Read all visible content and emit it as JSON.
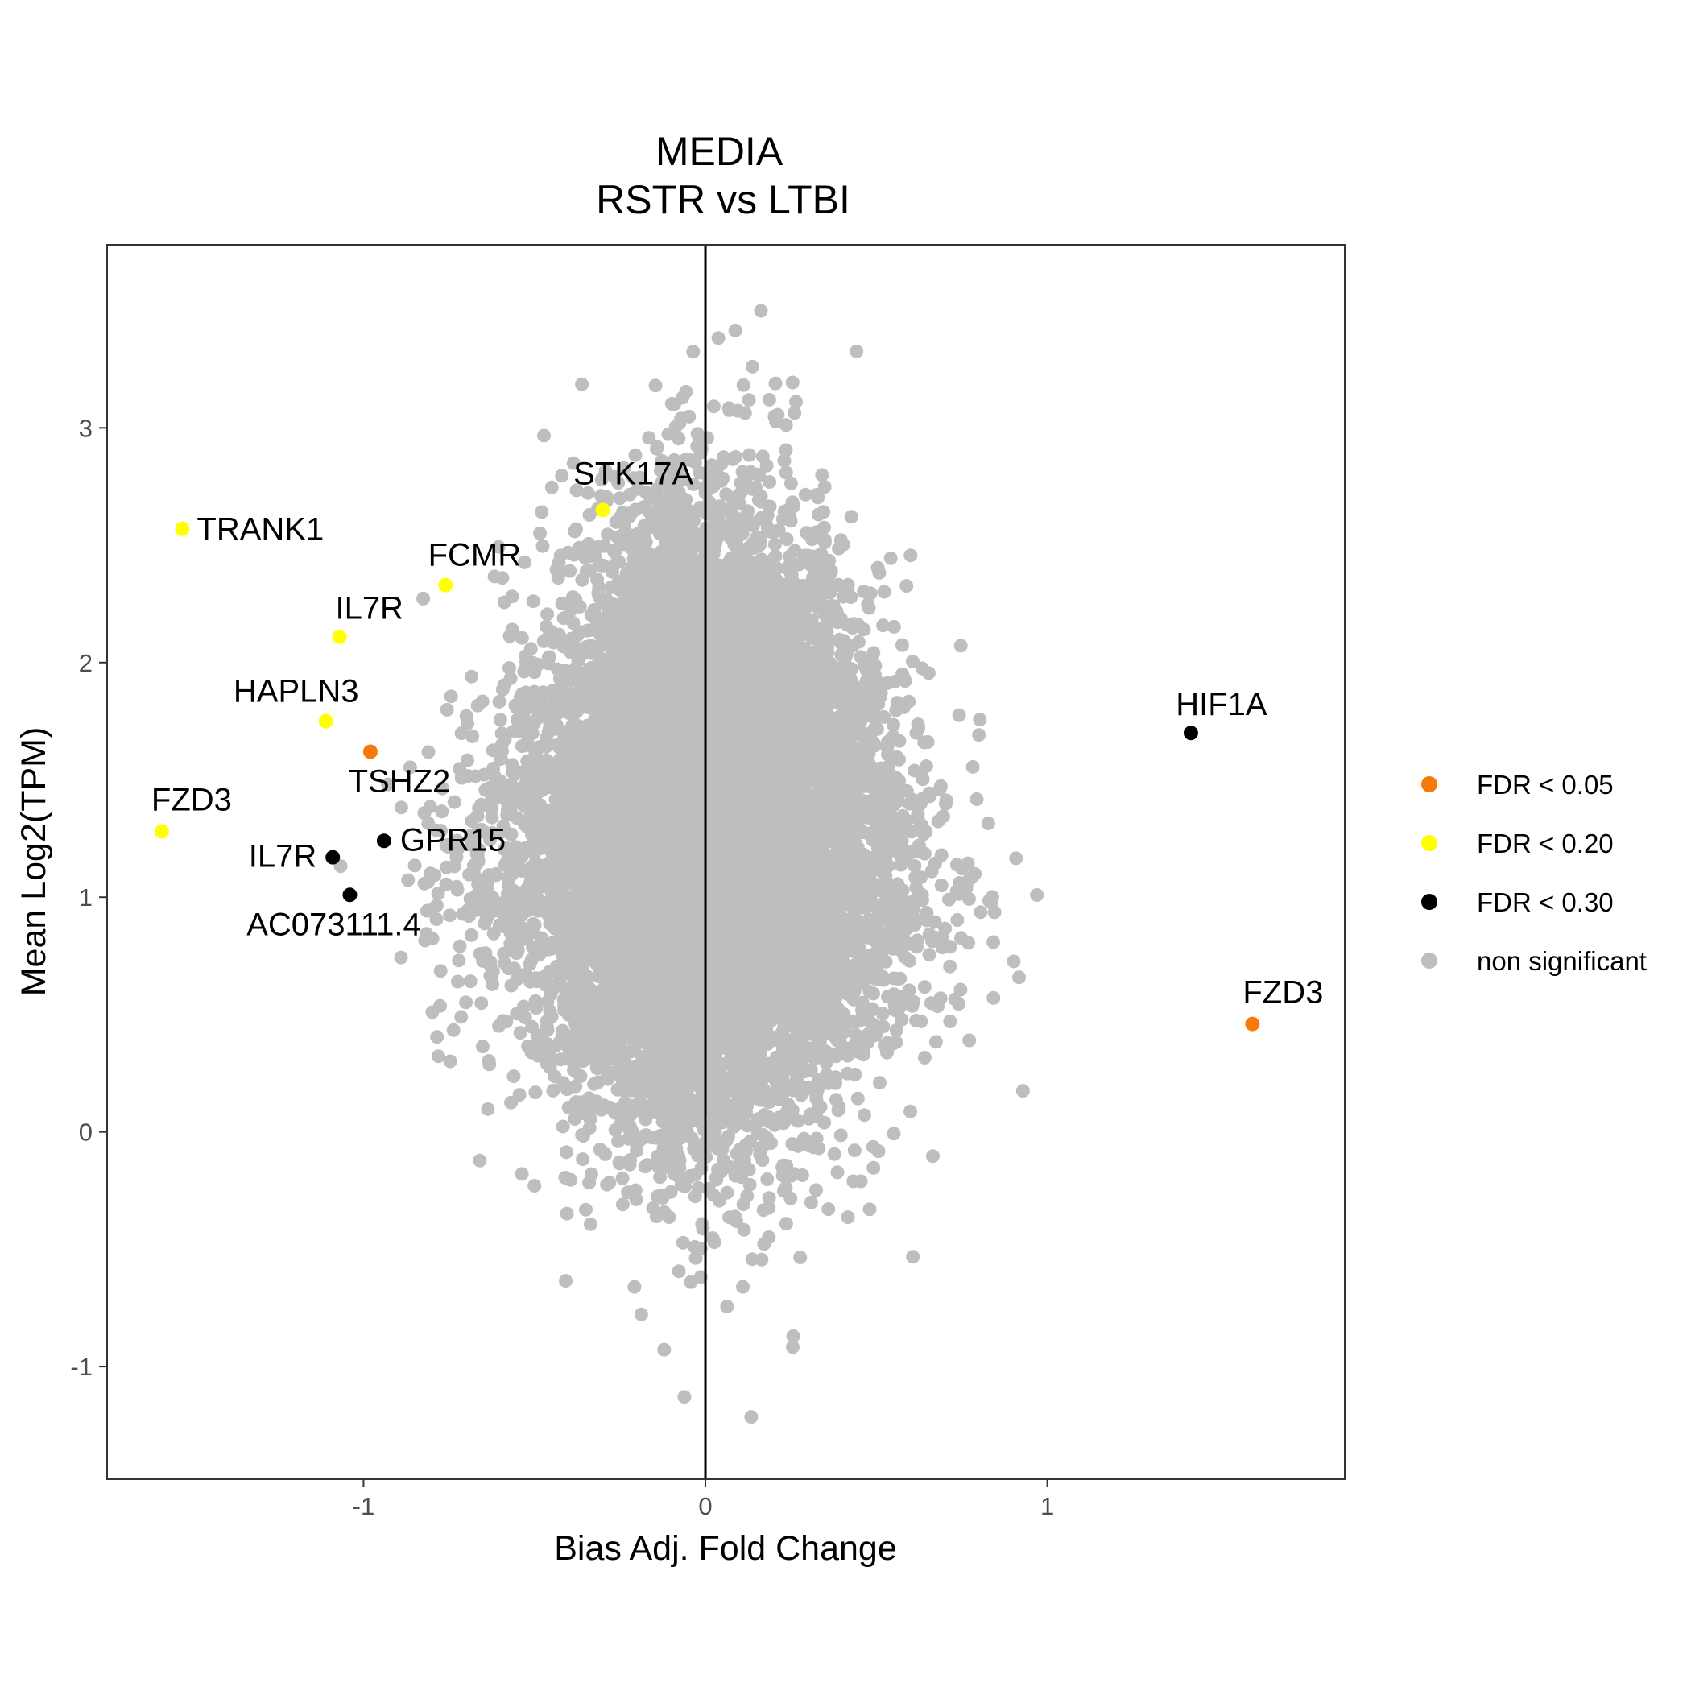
{
  "chart_data": {
    "type": "scatter",
    "title_lines": [
      "MEDIA",
      "RSTR vs LTBI"
    ],
    "xlabel": "Bias Adj. Fold Change",
    "ylabel": "Mean Log2(TPM)",
    "xlim": [
      -1.75,
      1.87
    ],
    "ylim": [
      -1.48,
      3.78
    ],
    "x_ticks": [
      {
        "value": -1,
        "label": "-1"
      },
      {
        "value": 0,
        "label": "0"
      },
      {
        "value": 1,
        "label": "1"
      }
    ],
    "y_ticks": [
      {
        "value": -1,
        "label": "-1"
      },
      {
        "value": 0,
        "label": "0"
      },
      {
        "value": 1,
        "label": "1"
      },
      {
        "value": 2,
        "label": "2"
      },
      {
        "value": 3,
        "label": "3"
      }
    ],
    "vline_x": 0,
    "grid": false,
    "legend": {
      "position": "right",
      "entries": [
        {
          "label": "FDR < 0.05",
          "color": "#F57A0A"
        },
        {
          "label": "FDR < 0.20",
          "color": "#FFFF00"
        },
        {
          "label": "FDR < 0.30",
          "color": "#000000"
        },
        {
          "label": "non significant",
          "color": "#BEBEBE"
        }
      ]
    },
    "background_cloud": {
      "category": "non significant",
      "color": "#BEBEBE",
      "center_x": 0.0,
      "y_range": [
        -1.25,
        3.55
      ]
    },
    "labeled_points": [
      {
        "gene": "STK17A",
        "x": -0.3,
        "y": 2.65,
        "category": "FDR < 0.20"
      },
      {
        "gene": "TRANK1",
        "x": -1.53,
        "y": 2.57,
        "category": "FDR < 0.20"
      },
      {
        "gene": "FCMR",
        "x": -0.76,
        "y": 2.33,
        "category": "FDR < 0.20"
      },
      {
        "gene": "IL7R",
        "x": -1.07,
        "y": 2.11,
        "category": "FDR < 0.20"
      },
      {
        "gene": "HAPLN3",
        "x": -1.11,
        "y": 1.75,
        "category": "FDR < 0.20"
      },
      {
        "gene": "TSHZ2",
        "x": -0.98,
        "y": 1.62,
        "category": "FDR < 0.05"
      },
      {
        "gene": "FZD3",
        "x": -1.59,
        "y": 1.28,
        "category": "FDR < 0.20"
      },
      {
        "gene": "GPR15",
        "x": -0.94,
        "y": 1.24,
        "category": "FDR < 0.30"
      },
      {
        "gene": "IL7R",
        "x": -1.09,
        "y": 1.17,
        "category": "FDR < 0.30"
      },
      {
        "gene": "AC073111.4",
        "x": -1.04,
        "y": 1.01,
        "category": "FDR < 0.30"
      },
      {
        "gene": "HIF1A",
        "x": 1.42,
        "y": 1.7,
        "category": "FDR < 0.30"
      },
      {
        "gene": "FZD3",
        "x": 1.6,
        "y": 0.46,
        "category": "FDR < 0.05"
      }
    ]
  }
}
